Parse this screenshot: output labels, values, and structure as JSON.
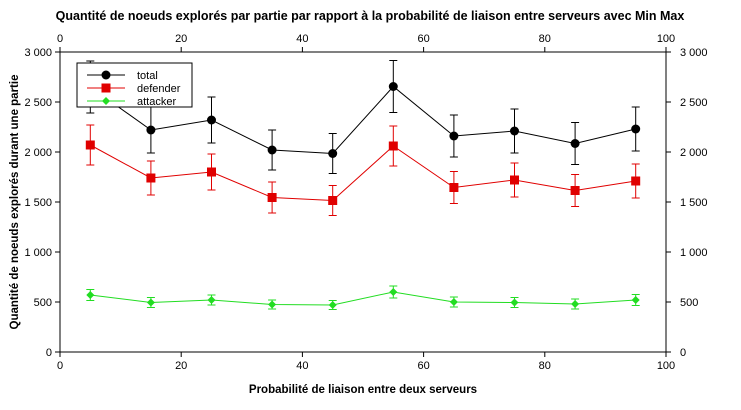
{
  "chart_data": {
    "type": "line",
    "title": "Quantité de noeuds explorés par partie par rapport à la probabilité de liaison entre serveurs avec Min Max",
    "xlabel": "Probabilité de liaison entre deux serveurs",
    "ylabel": "Quantité de noeuds explorés durant une partie",
    "xlim": [
      0,
      100
    ],
    "ylim": [
      0,
      3000
    ],
    "x_ticks": [
      0,
      20,
      40,
      60,
      80,
      100
    ],
    "x_tick_labels": [
      "0",
      "20",
      "40",
      "60",
      "80",
      "100"
    ],
    "y_ticks": [
      0,
      500,
      1000,
      1500,
      2000,
      2500,
      3000
    ],
    "y_tick_labels": [
      "0",
      "500",
      "1 000",
      "1 500",
      "2 000",
      "2 500",
      "3 000"
    ],
    "grid": false,
    "legend_position": "top-left",
    "x": [
      5,
      15,
      25,
      35,
      45,
      55,
      65,
      75,
      85,
      95
    ],
    "series": [
      {
        "name": "total",
        "color": "#000000",
        "marker": "circle",
        "values": [
          2650,
          2220,
          2320,
          2020,
          1985,
          2655,
          2160,
          2210,
          2085,
          2230
        ],
        "error": [
          260,
          230,
          230,
          200,
          200,
          260,
          210,
          220,
          210,
          220
        ]
      },
      {
        "name": "defender",
        "color": "#e00000",
        "marker": "square",
        "values": [
          2070,
          1740,
          1800,
          1545,
          1515,
          2060,
          1645,
          1720,
          1615,
          1710
        ],
        "error": [
          200,
          170,
          180,
          155,
          150,
          200,
          160,
          170,
          160,
          170
        ]
      },
      {
        "name": "attacker",
        "color": "#22dd22",
        "marker": "diamond",
        "values": [
          570,
          495,
          520,
          475,
          470,
          600,
          500,
          495,
          480,
          520
        ],
        "error": [
          55,
          50,
          50,
          45,
          45,
          60,
          50,
          50,
          50,
          55
        ]
      }
    ]
  }
}
